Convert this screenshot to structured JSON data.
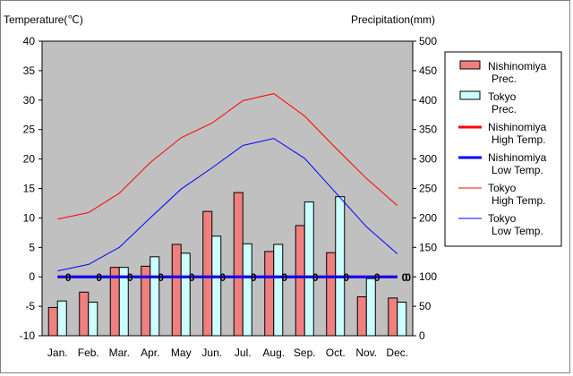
{
  "chart_data": {
    "type": "bar",
    "y_left_label": "Temperature(℃)",
    "y_right_label": "Precipitation(mm)",
    "y_left_range": [
      -10,
      40
    ],
    "y_right_range": [
      0,
      500
    ],
    "y_left_ticks": [
      "40",
      "35",
      "30",
      "25",
      "20",
      "15",
      "10",
      "5",
      "0",
      "-5",
      "-10"
    ],
    "y_right_ticks": [
      "500",
      "450",
      "400",
      "350",
      "300",
      "250",
      "200",
      "150",
      "100",
      "50",
      "0"
    ],
    "categories": [
      "Jan.",
      "Feb.",
      "Mar.",
      "Apr.",
      "May",
      "Jun.",
      "Jul.",
      "Aug.",
      "Sep.",
      "Oct.",
      "Nov.",
      "Dec."
    ],
    "grid": false,
    "legend_position": "right",
    "colors": {
      "plot_bg": "#c0c0c0",
      "nishi_prec": "#f08080",
      "tokyo_prec": "#ccffff",
      "nishi_high": "#ff0000",
      "nishi_low": "#0000ff",
      "tokyo_high": "#ff0000",
      "tokyo_low": "#0000ff"
    },
    "series": [
      {
        "name": "Nishinomiya Prec.",
        "kind": "bar",
        "axis": "right",
        "color": "#f08080",
        "values": [
          48,
          74,
          116,
          118,
          155,
          211,
          243,
          143,
          187,
          141,
          66,
          64
        ]
      },
      {
        "name": "Tokyo Prec.",
        "kind": "bar",
        "axis": "right",
        "color": "#ccffff",
        "values": [
          59,
          57,
          116,
          134,
          140,
          169,
          156,
          155,
          227,
          236,
          97,
          57
        ]
      },
      {
        "name": "Nishinomiya High Temp.",
        "kind": "line",
        "axis": "left",
        "color": "#ff0000",
        "width": 3,
        "values": [
          0,
          0,
          0,
          0,
          0,
          0,
          0,
          0,
          0,
          0,
          0,
          0
        ]
      },
      {
        "name": "Nishinomiya Low Temp.",
        "kind": "line",
        "axis": "left",
        "color": "#0000ff",
        "width": 3,
        "values": [
          0,
          0,
          0,
          0,
          0,
          0,
          0,
          0,
          0,
          0,
          0,
          0
        ]
      },
      {
        "name": "Tokyo High Temp.",
        "kind": "line",
        "axis": "left",
        "color": "#ff0000",
        "width": 1,
        "values": [
          9.8,
          10.9,
          14.2,
          19.4,
          23.6,
          26.1,
          29.9,
          31.1,
          27.3,
          21.9,
          16.7,
          12.1
        ]
      },
      {
        "name": "Tokyo Low Temp.",
        "kind": "line",
        "axis": "left",
        "color": "#0000ff",
        "width": 1,
        "values": [
          1.0,
          2.1,
          5.0,
          10.0,
          14.9,
          18.5,
          22.3,
          23.5,
          20.1,
          14.3,
          8.5,
          3.9
        ]
      }
    ],
    "data_labels": [
      "0",
      "0",
      "0",
      "0",
      "0",
      "0",
      "0",
      "0",
      "0",
      "0",
      "0",
      "0"
    ],
    "legend": [
      {
        "line1": "Nishinomiya",
        "line2": "Prec.",
        "kind": "bar",
        "color": "#f08080"
      },
      {
        "line1": "Tokyo",
        "line2": "Prec.",
        "kind": "bar",
        "color": "#ccffff"
      },
      {
        "line1": "Nishinomiya",
        "line2": "High Temp.",
        "kind": "line",
        "color": "#ff0000",
        "width": 3
      },
      {
        "line1": "Nishinomiya",
        "line2": "Low Temp.",
        "kind": "line",
        "color": "#0000ff",
        "width": 3
      },
      {
        "line1": "Tokyo",
        "line2": "High Temp.",
        "kind": "line",
        "color": "#ff0000",
        "width": 1
      },
      {
        "line1": "Tokyo",
        "line2": "Low Temp.",
        "kind": "line",
        "color": "#0000ff",
        "width": 1
      }
    ]
  }
}
